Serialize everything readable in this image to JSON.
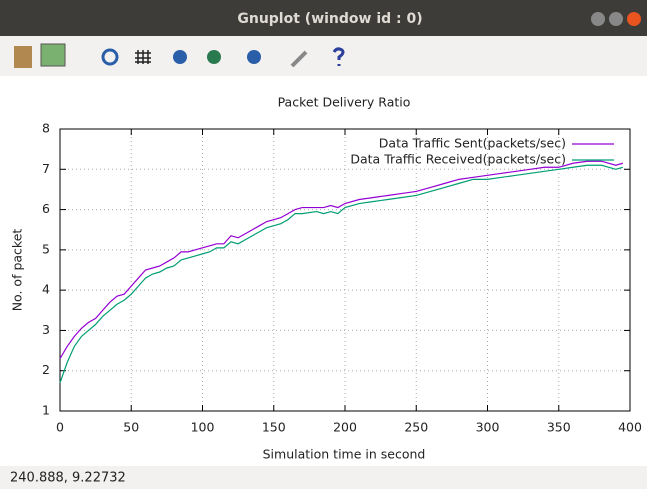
{
  "window": {
    "title": "Gnuplot (window id : 0)"
  },
  "chart_data": {
    "type": "line",
    "title": "Packet Delivery Ratio",
    "x_label": "Simulation time in second",
    "y_label": "No. of packet",
    "x": [
      0,
      5,
      10,
      15,
      20,
      25,
      30,
      35,
      40,
      45,
      50,
      55,
      60,
      65,
      70,
      75,
      80,
      85,
      90,
      95,
      100,
      105,
      110,
      115,
      120,
      125,
      130,
      135,
      140,
      145,
      150,
      155,
      160,
      165,
      170,
      180,
      185,
      190,
      195,
      200,
      210,
      220,
      230,
      240,
      250,
      260,
      270,
      280,
      290,
      300,
      310,
      320,
      330,
      340,
      350,
      360,
      370,
      380,
      390,
      395
    ],
    "series": [
      {
        "name": "Data Traffic Sent(packets/sec)",
        "color": "#9400d3",
        "values": [
          2.3,
          2.6,
          2.85,
          3.05,
          3.2,
          3.3,
          3.5,
          3.7,
          3.85,
          3.9,
          4.1,
          4.3,
          4.5,
          4.55,
          4.6,
          4.7,
          4.8,
          4.95,
          4.95,
          5.0,
          5.05,
          5.1,
          5.15,
          5.15,
          5.35,
          5.3,
          5.4,
          5.5,
          5.6,
          5.7,
          5.75,
          5.8,
          5.9,
          6.0,
          6.05,
          6.05,
          6.05,
          6.1,
          6.05,
          6.15,
          6.25,
          6.3,
          6.35,
          6.4,
          6.45,
          6.55,
          6.65,
          6.75,
          6.8,
          6.85,
          6.9,
          6.95,
          7.0,
          7.05,
          7.05,
          7.15,
          7.2,
          7.2,
          7.1,
          7.15
        ]
      },
      {
        "name": "Data Traffic Received(packets/sec)",
        "color": "#009e73",
        "values": [
          1.7,
          2.2,
          2.6,
          2.85,
          3.0,
          3.15,
          3.35,
          3.5,
          3.65,
          3.75,
          3.9,
          4.1,
          4.3,
          4.4,
          4.45,
          4.55,
          4.6,
          4.75,
          4.8,
          4.85,
          4.9,
          4.95,
          5.05,
          5.05,
          5.2,
          5.15,
          5.25,
          5.35,
          5.45,
          5.55,
          5.6,
          5.65,
          5.75,
          5.9,
          5.9,
          5.95,
          5.9,
          5.95,
          5.9,
          6.05,
          6.15,
          6.2,
          6.25,
          6.3,
          6.35,
          6.45,
          6.55,
          6.65,
          6.75,
          6.75,
          6.8,
          6.85,
          6.9,
          6.95,
          7.0,
          7.05,
          7.1,
          7.1,
          7.0,
          7.05
        ]
      }
    ],
    "xlim": [
      0,
      400
    ],
    "xticks": [
      0,
      50,
      100,
      150,
      200,
      250,
      300,
      350,
      400
    ],
    "ylim": [
      1,
      8
    ],
    "yticks": [
      1,
      2,
      3,
      4,
      5,
      6,
      7,
      8
    ],
    "grid": true,
    "legend": "top-right"
  },
  "status_bar": {
    "text": "240.888, 9.22732"
  }
}
